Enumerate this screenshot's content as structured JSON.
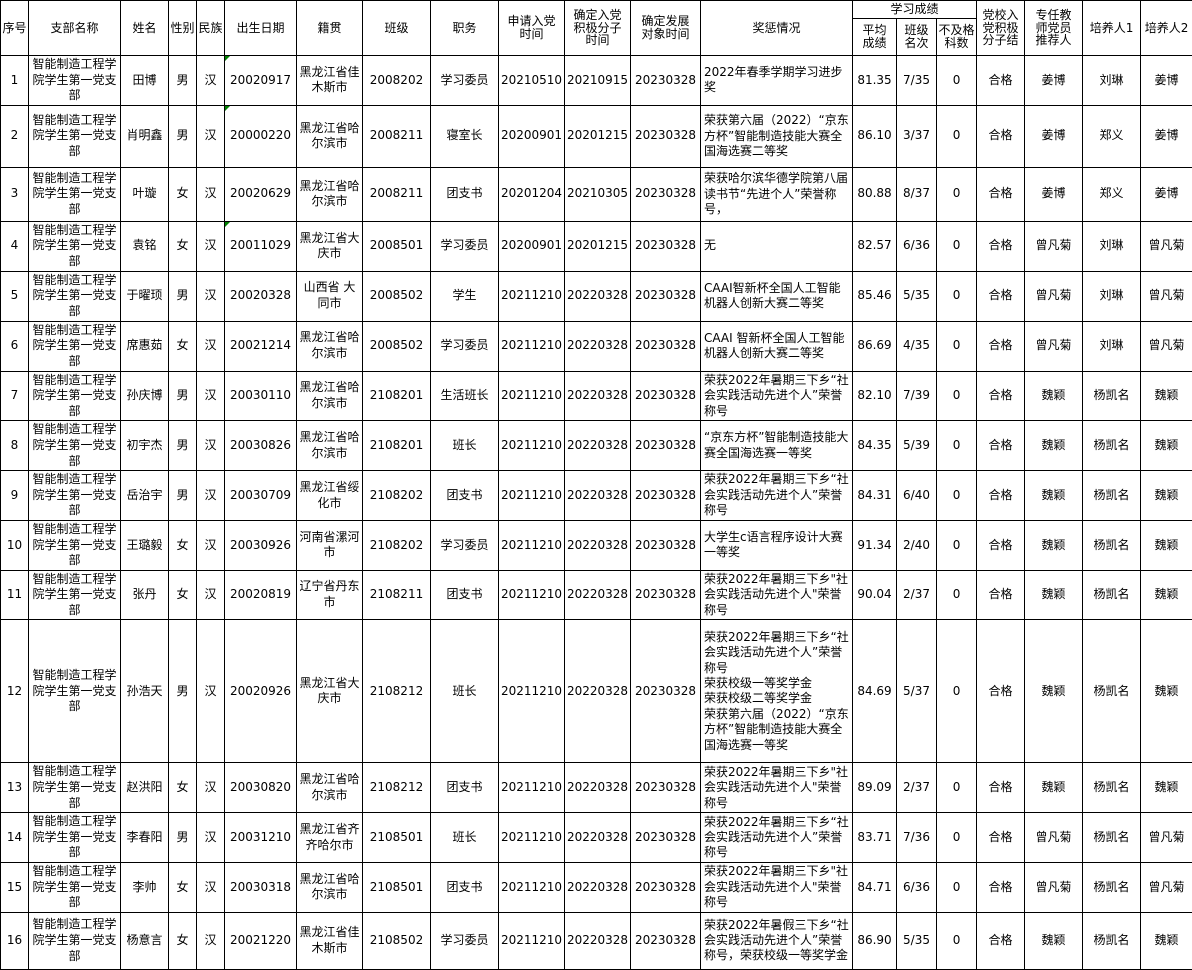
{
  "app": {
    "view": "spreadsheet-table",
    "language": "zh-CN"
  },
  "colors": {
    "grid": "#000000",
    "background": "#ffffff",
    "text": "#000000",
    "error_marker": "#008000"
  },
  "table": {
    "score_group_label": "学习成绩",
    "columns": [
      {
        "key": "index",
        "label": "序号"
      },
      {
        "key": "branch",
        "label": "支部名称"
      },
      {
        "key": "name",
        "label": "姓名"
      },
      {
        "key": "gender",
        "label": "性别"
      },
      {
        "key": "ethnicity",
        "label": "民族"
      },
      {
        "key": "birth_date",
        "label": "出生日期"
      },
      {
        "key": "native_place",
        "label": "籍贯"
      },
      {
        "key": "class",
        "label": "班级"
      },
      {
        "key": "position",
        "label": "职务"
      },
      {
        "key": "apply_date",
        "label": "申请入党\n时间"
      },
      {
        "key": "activist_date",
        "label": "确定入党\n积极分子\n时间"
      },
      {
        "key": "development_date",
        "label": "确定发展\n对象时间"
      },
      {
        "key": "awards",
        "label": "奖惩情况"
      },
      {
        "key": "avg_score",
        "label": "平均\n成绩",
        "group": "学习成绩"
      },
      {
        "key": "class_rank",
        "label": "班级\n名次",
        "group": "学习成绩"
      },
      {
        "key": "failed_subjects",
        "label": "不及格\n科数",
        "group": "学习成绩"
      },
      {
        "key": "party_school",
        "label": "党校入\n党积极\n分子结"
      },
      {
        "key": "teacher_recommender",
        "label": "专任教\n师党员\n推荐人"
      },
      {
        "key": "cultivator1",
        "label": "培养人1"
      },
      {
        "key": "cultivator2",
        "label": "培养人2"
      }
    ],
    "rows": [
      {
        "index": "1",
        "branch": "智能制造工程学院学生第一党支部",
        "name": "田博",
        "gender": "男",
        "ethnicity": "汉",
        "birth_date": "20020917",
        "birth_date_marker": true,
        "native_place": "黑龙江省佳木斯市",
        "class": "2008202",
        "position": "学习委员",
        "apply_date": "20210510",
        "activist_date": "20210915",
        "development_date": "20230328",
        "awards": "2022年春季学期学习进步奖",
        "avg_score": "81.35",
        "class_rank": "7/35",
        "failed_subjects": "0",
        "party_school": "合格",
        "teacher_recommender": "姜博",
        "cultivator1": "刘琳",
        "cultivator2": "姜博"
      },
      {
        "index": "2",
        "branch": "智能制造工程学院学生第一党支部",
        "name": "肖明鑫",
        "gender": "男",
        "ethnicity": "汉",
        "birth_date": "20000220",
        "birth_date_marker": true,
        "native_place": "黑龙江省哈尔滨市",
        "class": "2008211",
        "position": "寝室长",
        "apply_date": "20200901",
        "activist_date": "20201215",
        "development_date": "20230328",
        "awards": "荣获第六届（2022）“京东方杯”智能制造技能大赛全国海选赛二等奖",
        "avg_score": "86.10",
        "class_rank": "3/37",
        "failed_subjects": "0",
        "party_school": "合格",
        "teacher_recommender": "姜博",
        "cultivator1": "郑义",
        "cultivator2": "姜博"
      },
      {
        "index": "3",
        "branch": "智能制造工程学院学生第一党支部",
        "name": "叶璇",
        "gender": "女",
        "ethnicity": "汉",
        "birth_date": "20020629",
        "native_place": "黑龙江省哈尔滨市",
        "class": "2008211",
        "position": "团支书",
        "apply_date": "20201204",
        "activist_date": "20210305",
        "development_date": "20230328",
        "awards": "荣获哈尔滨华德学院第八届读书节“先进个人”荣誉称号，",
        "avg_score": "80.88",
        "class_rank": "8/37",
        "failed_subjects": "0",
        "party_school": "合格",
        "teacher_recommender": "姜博",
        "cultivator1": "郑义",
        "cultivator2": "姜博"
      },
      {
        "index": "4",
        "branch": "智能制造工程学院学生第一党支部",
        "name": "袁铭",
        "gender": "女",
        "ethnicity": "汉",
        "birth_date": "20011029",
        "birth_date_marker": true,
        "native_place": "黑龙江省大庆市",
        "class": "2008501",
        "position": "学习委员",
        "apply_date": "20200901",
        "activist_date": "20201215",
        "development_date": "20230328",
        "awards": "无",
        "avg_score": "82.57",
        "class_rank": "6/36",
        "failed_subjects": "0",
        "party_school": "合格",
        "teacher_recommender": "曾凡菊",
        "cultivator1": "刘琳",
        "cultivator2": "曾凡菊"
      },
      {
        "index": "5",
        "branch": "智能制造工程学院学生第一党支部",
        "name": "于曜顼",
        "gender": "男",
        "ethnicity": "汉",
        "birth_date": "20020328",
        "native_place": "山西省 大同市",
        "class": "2008502",
        "position": "学生",
        "apply_date": "20211210",
        "activist_date": "20220328",
        "development_date": "20230328",
        "awards": "CAAI智新杯全国人工智能机器人创新大赛二等奖",
        "avg_score": "85.46",
        "class_rank": "5/35",
        "failed_subjects": "0",
        "party_school": "合格",
        "teacher_recommender": "曾凡菊",
        "cultivator1": "刘琳",
        "cultivator2": "曾凡菊"
      },
      {
        "index": "6",
        "branch": "智能制造工程学院学生第一党支部",
        "name": "席惠茹",
        "gender": "女",
        "ethnicity": "汉",
        "birth_date": "20021214",
        "native_place": "黑龙江省哈尔滨市",
        "class": "2008502",
        "position": "学习委员",
        "apply_date": "20211210",
        "activist_date": "20220328",
        "development_date": "20230328",
        "awards": "CAAI 智新杯全国人工智能机器人创新大赛二等奖",
        "avg_score": "86.69",
        "class_rank": "4/35",
        "failed_subjects": "0",
        "party_school": "合格",
        "teacher_recommender": "曾凡菊",
        "cultivator1": "刘琳",
        "cultivator2": "曾凡菊"
      },
      {
        "index": "7",
        "branch": "智能制造工程学院学生第一党支部",
        "name": "孙庆博",
        "gender": "男",
        "ethnicity": "汉",
        "birth_date": "20030110",
        "native_place": "黑龙江省哈尔滨市",
        "class": "2108201",
        "position": "生活班长",
        "apply_date": "20211210",
        "activist_date": "20220328",
        "development_date": "20230328",
        "awards": "荣获2022年暑期三下乡“社会实践活动先进个人”荣誉称号",
        "avg_score": "82.10",
        "class_rank": "7/39",
        "failed_subjects": "0",
        "party_school": "合格",
        "teacher_recommender": "魏颖",
        "cultivator1": "杨凯名",
        "cultivator2": "魏颖"
      },
      {
        "index": "8",
        "branch": "智能制造工程学院学生第一党支部",
        "name": "初宇杰",
        "gender": "男",
        "ethnicity": "汉",
        "birth_date": "20030826",
        "native_place": "黑龙江省哈尔滨市",
        "class": "2108201",
        "position": "班长",
        "apply_date": "20211210",
        "activist_date": "20220328",
        "development_date": "20230328",
        "awards": "“京东方杯”智能制造技能大赛全国海选赛一等奖",
        "avg_score": "84.35",
        "class_rank": "5/39",
        "failed_subjects": "0",
        "party_school": "合格",
        "teacher_recommender": "魏颖",
        "cultivator1": "杨凯名",
        "cultivator2": "魏颖"
      },
      {
        "index": "9",
        "branch": "智能制造工程学院学生第一党支部",
        "name": "岳治宇",
        "gender": "男",
        "ethnicity": "汉",
        "birth_date": "20030709",
        "native_place": "黑龙江省绥化市",
        "class": "2108202",
        "position": "团支书",
        "apply_date": "20211210",
        "activist_date": "20220328",
        "development_date": "20230328",
        "awards": "荣获2022年暑期三下乡“社会实践活动先进个人”荣誉称号",
        "avg_score": "84.31",
        "class_rank": "6/40",
        "failed_subjects": "0",
        "party_school": "合格",
        "teacher_recommender": "魏颖",
        "cultivator1": "杨凯名",
        "cultivator2": "魏颖"
      },
      {
        "index": "10",
        "branch": "智能制造工程学院学生第一党支部",
        "name": "王璐毅",
        "gender": "女",
        "ethnicity": "汉",
        "birth_date": "20030926",
        "native_place": "河南省漯河市",
        "class": "2108202",
        "position": "学习委员",
        "apply_date": "20211210",
        "activist_date": "20220328",
        "development_date": "20230328",
        "awards": "大学生c语言程序设计大赛一等奖",
        "avg_score": "91.34",
        "class_rank": "2/40",
        "failed_subjects": "0",
        "party_school": "合格",
        "teacher_recommender": "魏颖",
        "cultivator1": "杨凯名",
        "cultivator2": "魏颖"
      },
      {
        "index": "11",
        "branch": "智能制造工程学院学生第一党支部",
        "name": "张丹",
        "gender": "女",
        "ethnicity": "汉",
        "birth_date": "20020819",
        "native_place": "辽宁省丹东市",
        "class": "2108211",
        "position": "团支书",
        "apply_date": "20211210",
        "activist_date": "20220328",
        "development_date": "20230328",
        "awards": "荣获2022年暑期三下乡\"社会实践活动先进个人\"荣誉称号",
        "avg_score": "90.04",
        "class_rank": "2/37",
        "failed_subjects": "0",
        "party_school": "合格",
        "teacher_recommender": "魏颖",
        "cultivator1": "杨凯名",
        "cultivator2": "魏颖"
      },
      {
        "index": "12",
        "branch": "智能制造工程学院学生第一党支部",
        "name": "孙浩天",
        "gender": "男",
        "ethnicity": "汉",
        "birth_date": "20020926",
        "native_place": "黑龙江省大庆市",
        "class": "2108212",
        "position": "班长",
        "apply_date": "20211210",
        "activist_date": "20220328",
        "development_date": "20230328",
        "awards": "荣获2022年暑期三下乡“社会实践活动先进个人”荣誉称号\n荣获校级一等奖学金\n荣获校级二等奖学金\n荣获第六届（2022）“京东方杯”智能制造技能大赛全国海选赛一等奖",
        "avg_score": "84.69",
        "class_rank": "5/37",
        "failed_subjects": "0",
        "party_school": "合格",
        "teacher_recommender": "魏颖",
        "cultivator1": "杨凯名",
        "cultivator2": "魏颖"
      },
      {
        "index": "13",
        "branch": "智能制造工程学院学生第一党支部",
        "name": "赵洪阳",
        "gender": "女",
        "ethnicity": "汉",
        "birth_date": "20030820",
        "native_place": "黑龙江省哈尔滨市",
        "class": "2108212",
        "position": "团支书",
        "apply_date": "20211210",
        "activist_date": "20220328",
        "development_date": "20230328",
        "awards": "荣获2022年暑期三下乡\"社会实践活动先进个人\"荣誉称号",
        "avg_score": "89.09",
        "class_rank": "2/37",
        "failed_subjects": "0",
        "party_school": "合格",
        "teacher_recommender": "魏颖",
        "cultivator1": "杨凯名",
        "cultivator2": "魏颖"
      },
      {
        "index": "14",
        "branch": "智能制造工程学院学生第一党支部",
        "name": "李春阳",
        "gender": "男",
        "ethnicity": "汉",
        "birth_date": "20031210",
        "native_place": "黑龙江省齐齐哈尔市",
        "class": "2108501",
        "position": "班长",
        "apply_date": "20211210",
        "activist_date": "20220328",
        "development_date": "20230328",
        "awards": "荣获2022年暑期三下乡“社会实践活动先进个人”荣誉称号",
        "avg_score": "83.71",
        "class_rank": "7/36",
        "failed_subjects": "0",
        "party_school": "合格",
        "teacher_recommender": "曾凡菊",
        "cultivator1": "杨凯名",
        "cultivator2": "曾凡菊"
      },
      {
        "index": "15",
        "branch": "智能制造工程学院学生第一党支部",
        "name": "李帅",
        "gender": "女",
        "ethnicity": "汉",
        "birth_date": "20030318",
        "native_place": "黑龙江省哈尔滨市",
        "class": "2108501",
        "position": "团支书",
        "apply_date": "20211210",
        "activist_date": "20220328",
        "development_date": "20230328",
        "awards": "荣获2022年暑期三下乡\"社会实践活动先进个人\"荣誉称号",
        "avg_score": "84.71",
        "class_rank": "6/36",
        "failed_subjects": "0",
        "party_school": "合格",
        "teacher_recommender": "曾凡菊",
        "cultivator1": "杨凯名",
        "cultivator2": "曾凡菊"
      },
      {
        "index": "16",
        "branch": "智能制造工程学院学生第一党支部",
        "name": "杨意言",
        "gender": "女",
        "ethnicity": "汉",
        "birth_date": "20021220",
        "native_place": "黑龙江省佳木斯市",
        "class": "2108502",
        "position": "学习委员",
        "apply_date": "20211210",
        "activist_date": "20220328",
        "development_date": "20230328",
        "awards": "荣获2022年暑假三下乡“社会实践活动先进个人”荣誉称号，荣获校级一等奖学金",
        "avg_score": "86.90",
        "class_rank": "5/35",
        "failed_subjects": "0",
        "party_school": "合格",
        "teacher_recommender": "魏颖",
        "cultivator1": "杨凯名",
        "cultivator2": "魏颖"
      }
    ]
  }
}
